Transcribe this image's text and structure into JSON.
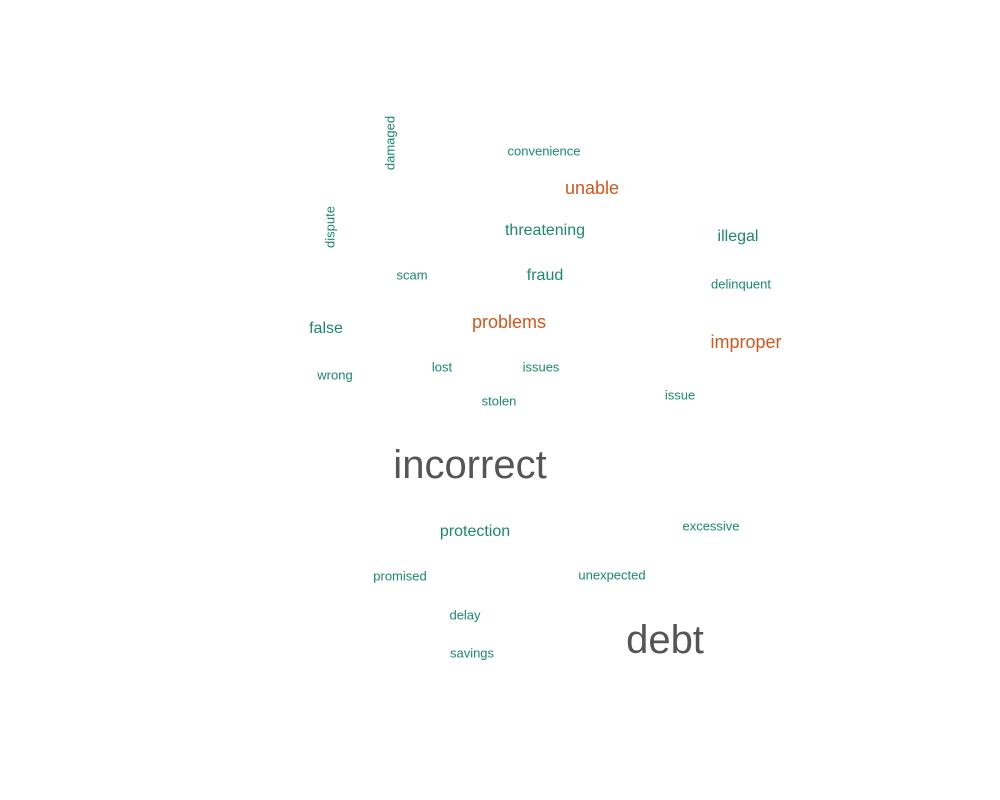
{
  "colors": {
    "green": "#1b8a6b",
    "orange": "#d4561c",
    "gray": "#555555"
  },
  "words": {
    "damaged": "damaged",
    "convenience": "convenience",
    "unable": "unable",
    "dispute": "dispute",
    "threatening": "threatening",
    "illegal": "illegal",
    "scam": "scam",
    "fraud": "fraud",
    "delinquent": "delinquent",
    "false": "false",
    "problems": "problems",
    "improper": "improper",
    "wrong": "wrong",
    "lost": "lost",
    "issues": "issues",
    "stolen": "stolen",
    "issue": "issue",
    "incorrect": "incorrect",
    "protection": "protection",
    "excessive": "excessive",
    "promised": "promised",
    "unexpected": "unexpected",
    "delay": "delay",
    "savings": "savings",
    "debt": "debt"
  }
}
